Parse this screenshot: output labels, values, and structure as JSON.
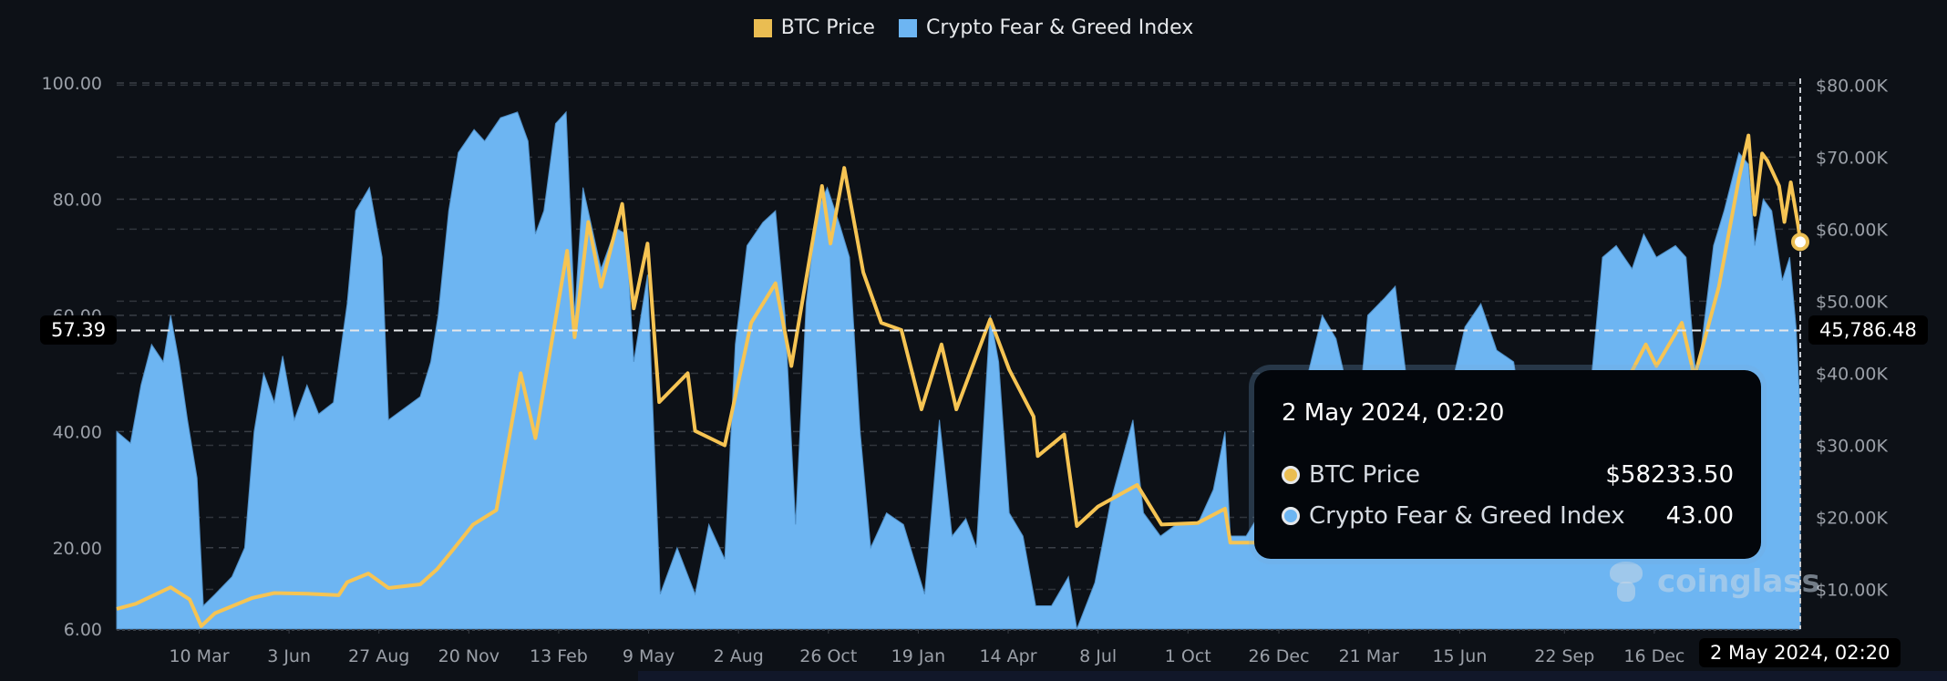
{
  "legend": [
    {
      "label": "BTC Price",
      "color": "#eabd52"
    },
    {
      "label": "Crypto Fear & Greed Index",
      "color": "#6db5f2"
    }
  ],
  "crosshair": {
    "left_value": "57.39",
    "right_value": "45,786.48",
    "date_label": "2 May 2024, 02:20"
  },
  "tooltip": {
    "title": "2 May 2024, 02:20",
    "rows": [
      {
        "label": "BTC Price",
        "value": "$58233.50",
        "color": "#eabd52"
      },
      {
        "label": "Crypto Fear & Greed Index",
        "value": "43.00",
        "color": "#6db5f2"
      }
    ]
  },
  "watermark": "coinglass",
  "chart_data": {
    "type": "line",
    "title": "",
    "x_start": "2019-12-23",
    "x_end": "2024-05-02",
    "xticks": [
      "10 Mar",
      "3 Jun",
      "27 Aug",
      "20 Nov",
      "13 Feb",
      "9 May",
      "2 Aug",
      "26 Oct",
      "19 Jan",
      "14 Apr",
      "8 Jul",
      "1 Oct",
      "26 Dec",
      "21 Mar",
      "15 Jun",
      "22 Sep",
      "16 Dec"
    ],
    "xtick_dates": [
      "2020-03-10",
      "2020-06-03",
      "2020-08-27",
      "2020-11-20",
      "2021-02-13",
      "2021-05-09",
      "2021-08-02",
      "2021-10-26",
      "2022-01-19",
      "2022-04-14",
      "2022-07-08",
      "2022-10-01",
      "2022-12-26",
      "2023-03-21",
      "2023-06-15",
      "2023-09-22",
      "2023-12-16"
    ],
    "y_left": {
      "label": "Crypto Fear & Greed Index",
      "ticks": [
        "100.00",
        "80.00",
        "60.00",
        "40.00",
        "20.00",
        "6.00"
      ],
      "tick_values": [
        100,
        80,
        60,
        40,
        20,
        6
      ],
      "range": [
        6,
        100
      ]
    },
    "y_right": {
      "label": "BTC Price",
      "ticks": [
        "$80.00K",
        "$70.00K",
        "$60.00K",
        "$50.00K",
        "$40.00K",
        "$30.00K",
        "$20.00K",
        "$10.00K"
      ],
      "tick_values": [
        80000,
        70000,
        60000,
        50000,
        40000,
        30000,
        20000,
        10000
      ],
      "range": [
        4500,
        80800
      ]
    },
    "series": [
      {
        "name": "BTC Price",
        "axis": "right",
        "type": "line",
        "points": [
          [
            "2019-12-23",
            7300
          ],
          [
            "2020-01-10",
            8000
          ],
          [
            "2020-02-12",
            10300
          ],
          [
            "2020-03-01",
            8600
          ],
          [
            "2020-03-12",
            4900
          ],
          [
            "2020-03-25",
            6700
          ],
          [
            "2020-04-29",
            8800
          ],
          [
            "2020-05-20",
            9500
          ],
          [
            "2020-06-20",
            9400
          ],
          [
            "2020-07-20",
            9200
          ],
          [
            "2020-07-28",
            11000
          ],
          [
            "2020-08-17",
            12200
          ],
          [
            "2020-09-05",
            10200
          ],
          [
            "2020-10-05",
            10700
          ],
          [
            "2020-10-21",
            12800
          ],
          [
            "2020-11-05",
            15500
          ],
          [
            "2020-11-24",
            19000
          ],
          [
            "2020-12-16",
            21000
          ],
          [
            "2021-01-08",
            40000
          ],
          [
            "2021-01-22",
            31000
          ],
          [
            "2021-02-21",
            57000
          ],
          [
            "2021-02-28",
            45000
          ],
          [
            "2021-03-13",
            61000
          ],
          [
            "2021-03-25",
            52000
          ],
          [
            "2021-04-14",
            63500
          ],
          [
            "2021-04-25",
            49000
          ],
          [
            "2021-05-08",
            58000
          ],
          [
            "2021-05-19",
            36000
          ],
          [
            "2021-06-15",
            40000
          ],
          [
            "2021-06-22",
            32000
          ],
          [
            "2021-07-20",
            30000
          ],
          [
            "2021-08-14",
            47000
          ],
          [
            "2021-09-06",
            52500
          ],
          [
            "2021-09-21",
            41000
          ],
          [
            "2021-10-20",
            66000
          ],
          [
            "2021-10-28",
            58000
          ],
          [
            "2021-11-10",
            68500
          ],
          [
            "2021-11-28",
            54000
          ],
          [
            "2021-12-15",
            47000
          ],
          [
            "2022-01-03",
            46000
          ],
          [
            "2022-01-22",
            35000
          ],
          [
            "2022-02-10",
            44000
          ],
          [
            "2022-02-24",
            35000
          ],
          [
            "2022-03-28",
            47500
          ],
          [
            "2022-04-15",
            40500
          ],
          [
            "2022-05-08",
            34000
          ],
          [
            "2022-05-12",
            28500
          ],
          [
            "2022-06-06",
            31500
          ],
          [
            "2022-06-18",
            18800
          ],
          [
            "2022-07-08",
            21500
          ],
          [
            "2022-08-14",
            24500
          ],
          [
            "2022-09-06",
            19000
          ],
          [
            "2022-10-10",
            19200
          ],
          [
            "2022-11-05",
            21200
          ],
          [
            "2022-11-10",
            16500
          ],
          [
            "2022-12-28",
            16500
          ],
          [
            "2023-01-20",
            22700
          ],
          [
            "2023-02-20",
            24800
          ],
          [
            "2023-03-10",
            20000
          ],
          [
            "2023-04-12",
            30400
          ],
          [
            "2023-05-12",
            26500
          ],
          [
            "2023-06-15",
            25000
          ],
          [
            "2023-06-25",
            30700
          ],
          [
            "2023-07-14",
            31500
          ],
          [
            "2023-08-17",
            26000
          ],
          [
            "2023-09-10",
            25800
          ],
          [
            "2023-10-23",
            34500
          ],
          [
            "2023-11-15",
            37500
          ],
          [
            "2023-12-08",
            44000
          ],
          [
            "2023-12-18",
            41000
          ],
          [
            "2024-01-11",
            47000
          ],
          [
            "2024-01-23",
            39500
          ],
          [
            "2024-02-15",
            52000
          ],
          [
            "2024-03-05",
            67000
          ],
          [
            "2024-03-14",
            73000
          ],
          [
            "2024-03-20",
            62000
          ],
          [
            "2024-03-27",
            70500
          ],
          [
            "2024-04-01",
            69500
          ],
          [
            "2024-04-12",
            66000
          ],
          [
            "2024-04-17",
            61000
          ],
          [
            "2024-04-23",
            66500
          ],
          [
            "2024-04-30",
            60500
          ],
          [
            "2024-05-02",
            58233.5
          ]
        ]
      },
      {
        "name": "Crypto Fear & Greed Index",
        "axis": "left",
        "type": "area",
        "points": [
          [
            "2019-12-23",
            40
          ],
          [
            "2020-01-05",
            38
          ],
          [
            "2020-01-15",
            48
          ],
          [
            "2020-01-25",
            55
          ],
          [
            "2020-02-05",
            52
          ],
          [
            "2020-02-12",
            60
          ],
          [
            "2020-02-20",
            52
          ],
          [
            "2020-02-28",
            42
          ],
          [
            "2020-03-08",
            32
          ],
          [
            "2020-03-14",
            10
          ],
          [
            "2020-03-25",
            12
          ],
          [
            "2020-04-10",
            15
          ],
          [
            "2020-04-22",
            20
          ],
          [
            "2020-05-01",
            40
          ],
          [
            "2020-05-10",
            50
          ],
          [
            "2020-05-20",
            45
          ],
          [
            "2020-05-28",
            53
          ],
          [
            "2020-06-08",
            42
          ],
          [
            "2020-06-20",
            48
          ],
          [
            "2020-07-01",
            43
          ],
          [
            "2020-07-15",
            45
          ],
          [
            "2020-07-28",
            62
          ],
          [
            "2020-08-05",
            78
          ],
          [
            "2020-08-18",
            82
          ],
          [
            "2020-08-30",
            70
          ],
          [
            "2020-09-05",
            42
          ],
          [
            "2020-09-20",
            44
          ],
          [
            "2020-10-05",
            46
          ],
          [
            "2020-10-15",
            52
          ],
          [
            "2020-10-22",
            60
          ],
          [
            "2020-11-01",
            78
          ],
          [
            "2020-11-10",
            88
          ],
          [
            "2020-11-25",
            92
          ],
          [
            "2020-12-05",
            90
          ],
          [
            "2020-12-20",
            94
          ],
          [
            "2021-01-05",
            95
          ],
          [
            "2021-01-15",
            90
          ],
          [
            "2021-01-22",
            74
          ],
          [
            "2021-01-30",
            78
          ],
          [
            "2021-02-10",
            93
          ],
          [
            "2021-02-20",
            95
          ],
          [
            "2021-02-28",
            60
          ],
          [
            "2021-03-08",
            82
          ],
          [
            "2021-03-25",
            68
          ],
          [
            "2021-04-08",
            75
          ],
          [
            "2021-04-18",
            74
          ],
          [
            "2021-04-25",
            52
          ],
          [
            "2021-05-08",
            67
          ],
          [
            "2021-05-15",
            35
          ],
          [
            "2021-05-20",
            12
          ],
          [
            "2021-06-05",
            20
          ],
          [
            "2021-06-22",
            12
          ],
          [
            "2021-07-05",
            24
          ],
          [
            "2021-07-20",
            18
          ],
          [
            "2021-07-30",
            55
          ],
          [
            "2021-08-10",
            72
          ],
          [
            "2021-08-25",
            76
          ],
          [
            "2021-09-06",
            78
          ],
          [
            "2021-09-15",
            60
          ],
          [
            "2021-09-25",
            24
          ],
          [
            "2021-10-05",
            62
          ],
          [
            "2021-10-15",
            78
          ],
          [
            "2021-10-25",
            82
          ],
          [
            "2021-11-05",
            76
          ],
          [
            "2021-11-15",
            70
          ],
          [
            "2021-11-25",
            40
          ],
          [
            "2021-12-05",
            20
          ],
          [
            "2021-12-20",
            26
          ],
          [
            "2022-01-05",
            24
          ],
          [
            "2022-01-15",
            18
          ],
          [
            "2022-01-25",
            12
          ],
          [
            "2022-02-08",
            42
          ],
          [
            "2022-02-20",
            22
          ],
          [
            "2022-03-05",
            25
          ],
          [
            "2022-03-15",
            20
          ],
          [
            "2022-03-28",
            60
          ],
          [
            "2022-04-05",
            52
          ],
          [
            "2022-04-15",
            26
          ],
          [
            "2022-04-28",
            22
          ],
          [
            "2022-05-10",
            10
          ],
          [
            "2022-05-25",
            10
          ],
          [
            "2022-06-10",
            15
          ],
          [
            "2022-06-18",
            6
          ],
          [
            "2022-07-05",
            14
          ],
          [
            "2022-07-20",
            28
          ],
          [
            "2022-08-10",
            42
          ],
          [
            "2022-08-20",
            26
          ],
          [
            "2022-09-05",
            22
          ],
          [
            "2022-09-20",
            24
          ],
          [
            "2022-10-10",
            24
          ],
          [
            "2022-10-25",
            30
          ],
          [
            "2022-11-05",
            40
          ],
          [
            "2022-11-10",
            22
          ],
          [
            "2022-11-25",
            22
          ],
          [
            "2022-12-15",
            28
          ],
          [
            "2022-12-28",
            25
          ],
          [
            "2023-01-10",
            35
          ],
          [
            "2023-01-20",
            48
          ],
          [
            "2023-02-05",
            60
          ],
          [
            "2023-02-18",
            56
          ],
          [
            "2023-03-10",
            40
          ],
          [
            "2023-03-20",
            60
          ],
          [
            "2023-04-05",
            63
          ],
          [
            "2023-04-15",
            65
          ],
          [
            "2023-04-25",
            50
          ],
          [
            "2023-05-10",
            45
          ],
          [
            "2023-05-25",
            48
          ],
          [
            "2023-06-05",
            46
          ],
          [
            "2023-06-20",
            58
          ],
          [
            "2023-07-05",
            62
          ],
          [
            "2023-07-20",
            54
          ],
          [
            "2023-08-05",
            52
          ],
          [
            "2023-08-17",
            38
          ],
          [
            "2023-09-05",
            42
          ],
          [
            "2023-09-20",
            44
          ],
          [
            "2023-10-05",
            45
          ],
          [
            "2023-10-18",
            50
          ],
          [
            "2023-10-28",
            70
          ],
          [
            "2023-11-10",
            72
          ],
          [
            "2023-11-25",
            68
          ],
          [
            "2023-12-06",
            74
          ],
          [
            "2023-12-18",
            70
          ],
          [
            "2024-01-05",
            72
          ],
          [
            "2024-01-15",
            70
          ],
          [
            "2024-01-25",
            48
          ],
          [
            "2024-02-10",
            72
          ],
          [
            "2024-02-20",
            78
          ],
          [
            "2024-03-05",
            88
          ],
          [
            "2024-03-14",
            86
          ],
          [
            "2024-03-20",
            72
          ],
          [
            "2024-03-28",
            80
          ],
          [
            "2024-04-05",
            78
          ],
          [
            "2024-04-15",
            66
          ],
          [
            "2024-04-22",
            70
          ],
          [
            "2024-04-28",
            58
          ],
          [
            "2024-05-02",
            43
          ]
        ]
      }
    ],
    "highlight_point": {
      "date": "2024-05-02",
      "btc_price": 58233.5,
      "fear_greed": 43
    },
    "grid": true,
    "legend_position": "top-center"
  }
}
